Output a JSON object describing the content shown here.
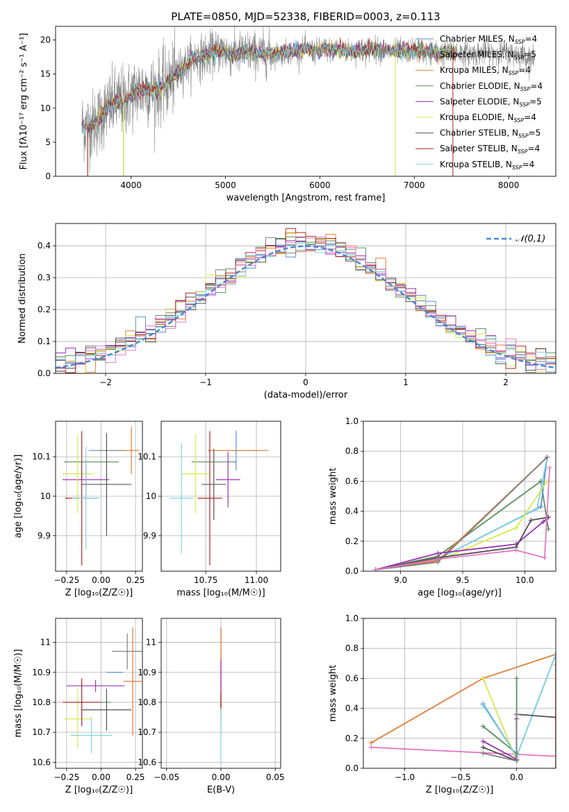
{
  "title": "PLATE=0850, MJD=52338, FIBERID=0003, z=0.113",
  "model_colors": [
    "#5b8bd6",
    "#7f7f7f",
    "#e67c36",
    "#5a8f5e",
    "#9b30b8",
    "#d7e84a",
    "#505050",
    "#b22222",
    "#7fd4de"
  ],
  "chart_data": [
    {
      "id": "spectrum",
      "type": "line",
      "xlabel": "wavelength [Angstrom, rest frame]",
      "ylabel": "Flux [fλ10⁻¹⁷ erg cm⁻² s⁻¹ A⁻¹]",
      "xlim": [
        3200,
        8500
      ],
      "ylim": [
        0,
        22
      ],
      "xticks": [
        4000,
        5000,
        6000,
        7000,
        8000
      ],
      "yticks": [
        0,
        5,
        10,
        15,
        20
      ],
      "legend_placement": "upper right",
      "legend": [
        "Chabrier MILES, N_SSP=4",
        "Salpeter MILES, N_SSP=5",
        "Kroupa MILES, N_SSP=4",
        "Chabrier ELODIE, N_SSP=4",
        "Salpeter ELODIE, N_SSP=5",
        "Kroupa ELODIE, N_SSP=4",
        "Chabrier STELIB, N_SSP=5",
        "Salpeter STELIB, N_SSP=4",
        "Kroupa STELIB, N_SSP=4"
      ],
      "data_curve": {
        "x": [
          3480,
          3550,
          3650,
          3750,
          3850,
          3950,
          4050,
          4150,
          4250,
          4350,
          4450,
          4550,
          4650,
          4750,
          4850,
          4950,
          5050,
          5150,
          5250,
          5350,
          5450,
          5550,
          5650,
          5750,
          5850,
          5950,
          6050,
          6150,
          6250,
          6350,
          6450,
          6550,
          6650,
          6750,
          6850,
          6950,
          7050,
          7150,
          7250,
          7350,
          7450,
          7550,
          7650,
          7750,
          7850,
          7950,
          8050,
          8150,
          8280
        ],
        "y": [
          7.5,
          7.3,
          8.2,
          10.0,
          10.8,
          11.2,
          12.5,
          12.8,
          12.5,
          13.3,
          14.5,
          16.0,
          17.2,
          17.5,
          18.0,
          18.5,
          18.0,
          18.0,
          18.3,
          18.0,
          18.0,
          18.0,
          18.2,
          18.5,
          18.6,
          18.3,
          18.7,
          18.5,
          18.4,
          18.3,
          18.5,
          18.7,
          18.5,
          18.3,
          18.4,
          18.4,
          18.5,
          18.2,
          18.0,
          18.2,
          18.1,
          18.0,
          18.0,
          18.2,
          18.0,
          18.1,
          18.0,
          17.8,
          17.0
        ]
      },
      "model_curve_range": [
        3480,
        7450
      ],
      "model_dropouts": [
        {
          "x": 3540,
          "series": [
            2,
            7
          ]
        },
        {
          "x": 3920,
          "series": [
            3,
            5
          ]
        },
        {
          "x": 6800,
          "series": [
            2,
            5
          ]
        },
        {
          "x": 7410,
          "series": [
            7
          ]
        }
      ]
    },
    {
      "id": "residuals",
      "type": "histogram",
      "xlabel": "(data-model)/error",
      "ylabel": "Normed distribution",
      "xlim": [
        -2.5,
        2.5
      ],
      "ylim": [
        0,
        0.47
      ],
      "xticks": [
        -2,
        -1,
        0,
        1,
        2
      ],
      "xticklabels": [
        "−2",
        "−1",
        "0",
        "1",
        "2"
      ],
      "yticks": [
        0.0,
        0.1,
        0.2,
        0.3,
        0.4
      ],
      "legend": [
        "𝒩(0,1)"
      ],
      "legend_placement": "upper right",
      "bins": [
        -2.5,
        2.5,
        50
      ],
      "reference": {
        "name": "𝒩(0,1)",
        "type": "normal",
        "mean": 0,
        "sd": 1,
        "style": "dashed",
        "color": "#4a86d6"
      }
    },
    {
      "id": "age_vs_Z",
      "type": "errorbar",
      "xlabel": "Z [log₁₀(Z/Z☉)]",
      "ylabel": "age  [log₁₀(age/yr)]",
      "xlim": [
        -0.33,
        0.3
      ],
      "ylim": [
        9.81,
        10.19
      ],
      "xticks": [
        -0.25,
        0.0,
        0.25
      ],
      "xticklabels": [
        "−0.25",
        "0.00",
        "0.25"
      ],
      "yticks": [
        9.9,
        10.0,
        10.1
      ],
      "points": [
        {
          "s": 0,
          "x": 0.05,
          "y": 10.116,
          "xe": 0.14,
          "ye": 0.0
        },
        {
          "s": 1,
          "x": 0.09,
          "y": 10.116,
          "xe": 0.12,
          "ye": 0.0
        },
        {
          "s": 2,
          "x": 0.22,
          "y": 10.116,
          "xe": 0.06,
          "ye": 0.06
        },
        {
          "s": 3,
          "x": -0.07,
          "y": 10.087,
          "xe": 0.2,
          "ye": 0.0
        },
        {
          "s": 4,
          "x": -0.11,
          "y": 10.042,
          "xe": 0.17,
          "ye": 0.05
        },
        {
          "s": 5,
          "x": -0.17,
          "y": 10.057,
          "xe": 0.11,
          "ye": 0.1
        },
        {
          "s": 6,
          "x": 0.04,
          "y": 10.03,
          "xe": 0.18,
          "ye": 0.13
        },
        {
          "s": 7,
          "x": -0.14,
          "y": 9.995,
          "xe": 0.12,
          "ye": 0.17
        },
        {
          "s": 8,
          "x": -0.11,
          "y": 9.995,
          "xe": 0.1,
          "ye": 0.13
        }
      ]
    },
    {
      "id": "age_vs_mass",
      "type": "errorbar",
      "xlabel": "mass [log₁₀(M/M☉)]",
      "ylabel": "",
      "xlim": [
        10.53,
        11.12
      ],
      "ylim": [
        9.81,
        10.19
      ],
      "xticks": [
        10.75,
        11.0
      ],
      "xticklabels": [
        "10.75",
        "11.00"
      ],
      "yticks": [
        9.9,
        10.0,
        10.1
      ],
      "points": [
        {
          "s": 0,
          "x": 10.9,
          "y": 10.116,
          "xe": 0.1,
          "ye": 0.05
        },
        {
          "s": 1,
          "x": 10.96,
          "y": 10.116,
          "xe": 0.1,
          "ye": 0.0
        },
        {
          "s": 2,
          "x": 10.91,
          "y": 10.116,
          "xe": 0.15,
          "ye": 0.0
        },
        {
          "s": 3,
          "x": 10.79,
          "y": 10.087,
          "xe": 0.11,
          "ye": 0.0
        },
        {
          "s": 4,
          "x": 10.86,
          "y": 10.042,
          "xe": 0.06,
          "ye": 0.07
        },
        {
          "s": 5,
          "x": 10.7,
          "y": 10.057,
          "xe": 0.07,
          "ye": 0.1
        },
        {
          "s": 6,
          "x": 10.79,
          "y": 10.03,
          "xe": 0.06,
          "ye": 0.09
        },
        {
          "s": 7,
          "x": 10.77,
          "y": 9.995,
          "xe": 0.06,
          "ye": 0.17
        },
        {
          "s": 8,
          "x": 10.63,
          "y": 9.995,
          "xe": 0.06,
          "ye": 0.14
        }
      ]
    },
    {
      "id": "weight_vs_age",
      "type": "line",
      "xlabel": "age  [log₁₀(age/yr)]",
      "ylabel": "mass weight",
      "xlim": [
        8.7,
        10.25
      ],
      "ylim": [
        0,
        1.0
      ],
      "xticks": [
        9.0,
        9.5,
        10.0
      ],
      "xticklabels": [
        "9.0",
        "9.5",
        "10.0"
      ],
      "yticks": [
        0.0,
        0.2,
        0.4,
        0.6,
        0.8,
        1.0
      ],
      "series": [
        {
          "s": 3,
          "x": [
            8.8,
            9.3,
            10.13,
            10.19,
            10.13
          ],
          "y": [
            0.01,
            0.1,
            0.6,
            0.28,
            0.6
          ]
        },
        {
          "s": 0,
          "x": [
            8.8,
            9.3,
            10.13,
            10.18
          ],
          "y": [
            0.01,
            0.08,
            0.43,
            0.76
          ]
        },
        {
          "s": 8,
          "x": [
            8.8,
            9.3,
            10.1,
            10.18
          ],
          "y": [
            0.01,
            0.08,
            0.42,
            0.76
          ]
        },
        {
          "s": 5,
          "x": [
            8.8,
            9.3,
            9.93,
            10.18
          ],
          "y": [
            0.01,
            0.07,
            0.29,
            0.6
          ]
        },
        {
          "s": 2,
          "x": [
            8.8,
            9.3,
            10.18
          ],
          "y": [
            0.01,
            0.07,
            0.76
          ]
        },
        {
          "s": 1,
          "x": [
            8.8,
            9.3,
            10.18
          ],
          "y": [
            0.01,
            0.06,
            0.76
          ]
        },
        {
          "s": 4,
          "x": [
            8.8,
            9.3,
            9.93,
            10.15,
            10.19
          ],
          "y": [
            0.01,
            0.12,
            0.18,
            0.33,
            0.36
          ]
        },
        {
          "s": 6,
          "x": [
            8.8,
            9.3,
            9.93,
            10.05,
            10.19
          ],
          "y": [
            0.01,
            0.09,
            0.16,
            0.34,
            0.36
          ]
        },
        {
          "s": "pink",
          "x": [
            8.8,
            9.3,
            9.93,
            10.16,
            10.2,
            10.16
          ],
          "y": [
            0.01,
            0.08,
            0.14,
            0.09,
            0.69,
            0.09
          ]
        }
      ]
    },
    {
      "id": "mass_vs_Z",
      "type": "errorbar",
      "xlabel": "Z [log₁₀(Z/Z☉)]",
      "ylabel": "mass [log₁₀(M/M☉)]",
      "xlim": [
        -0.33,
        0.3
      ],
      "ylim": [
        10.58,
        11.08
      ],
      "xticks": [
        -0.25,
        0.0,
        0.25
      ],
      "xticklabels": [
        "−0.25",
        "0.00",
        "0.25"
      ],
      "yticks": [
        10.6,
        10.7,
        10.8,
        10.9,
        11.0
      ],
      "points": [
        {
          "s": 0,
          "x": 0.1,
          "y": 10.9,
          "xe": 0.06,
          "ye": 0.0
        },
        {
          "s": 2,
          "x": 0.23,
          "y": 10.87,
          "xe": 0.07,
          "ye": 0.18
        },
        {
          "s": 1,
          "x": 0.19,
          "y": 10.97,
          "xe": 0.11,
          "ye": 0.06
        },
        {
          "s": 3,
          "x": -0.1,
          "y": 10.8,
          "xe": 0.17,
          "ye": 0.0
        },
        {
          "s": 4,
          "x": -0.04,
          "y": 10.855,
          "xe": 0.21,
          "ye": 0.02
        },
        {
          "s": 5,
          "x": -0.17,
          "y": 10.745,
          "xe": 0.1,
          "ye": 0.1
        },
        {
          "s": 6,
          "x": 0.04,
          "y": 10.775,
          "xe": 0.18,
          "ye": 0.07
        },
        {
          "s": 7,
          "x": -0.14,
          "y": 10.8,
          "xe": 0.14,
          "ye": 0.08
        },
        {
          "s": 8,
          "x": -0.07,
          "y": 10.69,
          "xe": 0.15,
          "ye": 0.06
        }
      ]
    },
    {
      "id": "mass_vs_ebv",
      "type": "errorbar",
      "xlabel": "E(B-V)",
      "ylabel": "",
      "xlim": [
        -0.055,
        0.055
      ],
      "ylim": [
        10.58,
        11.08
      ],
      "xticks": [
        -0.05,
        0.0,
        0.05
      ],
      "xticklabels": [
        "−0.05",
        "0.00",
        "0.05"
      ],
      "yticks": [
        10.6,
        10.7,
        10.8,
        10.9,
        11.0
      ],
      "points": [
        {
          "s": 1,
          "x": 0.0,
          "y": 10.9,
          "xe": 0.0,
          "ye": 0.15
        },
        {
          "s": 2,
          "x": 0.0,
          "y": 10.87,
          "xe": 0.0,
          "ye": 0.18
        },
        {
          "s": 4,
          "x": 0.0,
          "y": 10.86,
          "xe": 0.0,
          "ye": 0.08
        },
        {
          "s": 7,
          "x": 0.0,
          "y": 10.8,
          "xe": 0.0,
          "ye": 0.03
        },
        {
          "s": 8,
          "x": 0.0,
          "y": 10.69,
          "xe": 0.0,
          "ye": 0.09
        }
      ]
    },
    {
      "id": "weight_vs_Z",
      "type": "line",
      "xlabel": "Z [log₁₀(Z/Z☉)]",
      "ylabel": "mass weight",
      "xlim": [
        -1.37,
        0.35
      ],
      "ylim": [
        0,
        1.0
      ],
      "xticks": [
        -1.0,
        -0.5,
        0.0
      ],
      "xticklabels": [
        "−1.0",
        "−0.5",
        "0.0"
      ],
      "yticks": [
        0.0,
        0.2,
        0.4,
        0.6,
        0.8,
        1.0
      ],
      "series": [
        {
          "s": "pink",
          "x": [
            -1.3,
            0.35,
            0.35
          ],
          "y": [
            0.14,
            0.08,
            0.69
          ]
        },
        {
          "s": 2,
          "x": [
            -1.3,
            -0.3,
            0.35,
            0.35
          ],
          "y": [
            0.17,
            0.6,
            0.76,
            0.0
          ]
        },
        {
          "s": 5,
          "x": [
            -0.3,
            0.0
          ],
          "y": [
            0.6,
            0.05
          ]
        },
        {
          "s": 3,
          "x": [
            -0.3,
            0.0,
            0.0
          ],
          "y": [
            0.28,
            0.1,
            0.6
          ]
        },
        {
          "s": 0,
          "x": [
            -0.3,
            0.0,
            0.35
          ],
          "y": [
            0.43,
            0.08,
            0.76
          ]
        },
        {
          "s": 8,
          "x": [
            -0.3,
            0.0,
            0.35
          ],
          "y": [
            0.42,
            0.08,
            0.76
          ]
        },
        {
          "s": 4,
          "x": [
            -0.3,
            0.0,
            0.0
          ],
          "y": [
            0.18,
            0.06,
            0.33
          ]
        },
        {
          "s": 6,
          "x": [
            -0.3,
            0.0,
            0.0,
            0.35
          ],
          "y": [
            0.14,
            0.05,
            0.36,
            0.34
          ]
        },
        {
          "s": 1,
          "x": [
            -0.3,
            0.0,
            0.0
          ],
          "y": [
            0.1,
            0.05,
            0.36
          ]
        }
      ]
    }
  ]
}
